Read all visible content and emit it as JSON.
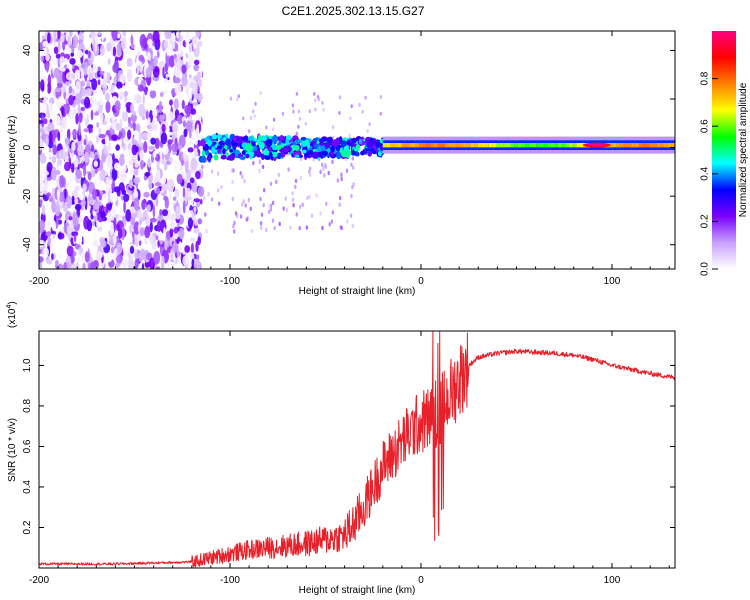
{
  "title": "C2E1.2025.302.13.15.G27",
  "chart_data": [
    {
      "type": "heatmap",
      "name": "spectrogram",
      "xlabel": "Height of straight line (km)",
      "ylabel": "Frequency (Hz)",
      "xlim": [
        -200,
        133
      ],
      "ylim": [
        -50,
        48
      ],
      "xticks": [
        -200,
        -100,
        0,
        100
      ],
      "yticks": [
        -40,
        -20,
        0,
        20,
        40
      ],
      "colorbar": {
        "label": "Normalized spectral amplitude",
        "range": [
          0,
          1
        ],
        "ticks": [
          "0.0",
          "0.2",
          "0.4",
          "0.6",
          "0.8"
        ],
        "colors": [
          "#ffffff",
          "#c8a0ff",
          "#7a00ff",
          "#0000ff",
          "#00ffff",
          "#00ff00",
          "#ffff00",
          "#ff8000",
          "#ff0000",
          "#ff0080"
        ]
      },
      "features": [
        {
          "label": "Noise region",
          "x_range": [
            -200,
            -115
          ],
          "freq_range": [
            -50,
            48
          ],
          "amplitude_range": [
            0.0,
            0.25
          ]
        },
        {
          "label": "Onset band",
          "x_range": [
            -115,
            -20
          ],
          "freq_center": 0,
          "freq_halfwidth": 5,
          "amplitude_range": [
            0.2,
            0.5
          ]
        },
        {
          "label": "Carrier line",
          "x_range": [
            -20,
            133
          ],
          "freq_center": 1,
          "freq_halfwidth": 2,
          "amplitude_range": [
            0.5,
            1.0
          ]
        },
        {
          "label": "Peak",
          "x": 92,
          "freq": 1,
          "amplitude": 1.0
        }
      ]
    },
    {
      "type": "line",
      "name": "snr",
      "xlabel": "Height of straight line (km)",
      "ylabel": "SNR (10 * v/v)",
      "y_multiplier": "(x10",
      "y_exponent": "4",
      "y_multiplier_close": ")",
      "xlim": [
        -200,
        133
      ],
      "ylim": [
        0,
        1.17
      ],
      "xticks": [
        -200,
        -100,
        0,
        100
      ],
      "yticks": [
        0.2,
        0.4,
        0.6,
        0.8,
        1.0
      ],
      "ytick_labels": [
        "0.2",
        "0.4",
        "0.6",
        "0.8",
        "1.0"
      ],
      "series": [
        {
          "name": "SNR",
          "color": "#e8202a",
          "x": [
            -200,
            -180,
            -160,
            -140,
            -120,
            -110,
            -100,
            -90,
            -80,
            -70,
            -60,
            -50,
            -40,
            -35,
            -30,
            -25,
            -20,
            -15,
            -10,
            -5,
            0,
            5,
            10,
            15,
            20,
            25,
            30,
            40,
            50,
            60,
            70,
            80,
            90,
            100,
            110,
            120,
            133
          ],
          "y": [
            0.02,
            0.02,
            0.02,
            0.025,
            0.03,
            0.05,
            0.07,
            0.09,
            0.1,
            0.11,
            0.12,
            0.14,
            0.16,
            0.22,
            0.3,
            0.4,
            0.5,
            0.56,
            0.62,
            0.68,
            0.72,
            0.74,
            0.78,
            0.85,
            0.93,
            1.0,
            1.04,
            1.06,
            1.07,
            1.065,
            1.06,
            1.05,
            1.03,
            1.0,
            0.98,
            0.96,
            0.94
          ]
        }
      ]
    }
  ]
}
